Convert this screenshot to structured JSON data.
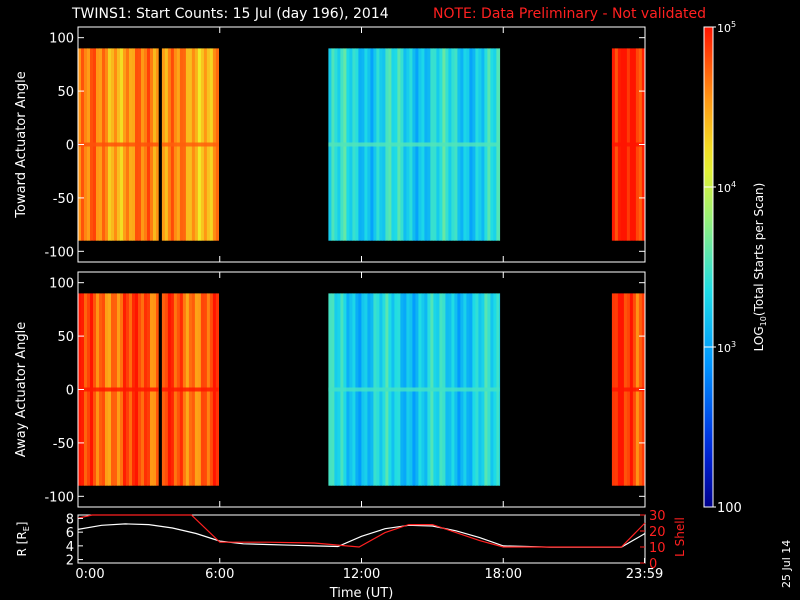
{
  "header": {
    "title": "TWINS1: Start Counts: 15 Jul (day 196), 2014",
    "note": "NOTE: Data Preliminary - Not validated",
    "note_color": "#ff2020"
  },
  "side_date": "25 Jul 14",
  "colorbar": {
    "label_main": "LOG",
    "label_sub": "10",
    "label_rest": "(Total Starts per Scan)",
    "ticks": [
      {
        "value": 100000,
        "base": "10",
        "exp": "5"
      },
      {
        "value": 10000,
        "base": "10",
        "exp": "4"
      },
      {
        "value": 1000,
        "base": "10",
        "exp": "3"
      },
      {
        "value": 100,
        "base": "100",
        "exp": ""
      }
    ],
    "min": 100,
    "max": 100000,
    "scale": "log"
  },
  "chart_data": [
    {
      "type": "heatmap",
      "ylabel": "Toward Actuator Angle",
      "ylim": [
        -110,
        110
      ],
      "yticks": [
        "100",
        "50",
        "0",
        "-50",
        "-100"
      ],
      "xlim": [
        0,
        24
      ],
      "data_angle_range": [
        -90,
        90
      ],
      "grid": false,
      "segments": [
        {
          "start_h": 0.0,
          "end_h": 3.4,
          "log_counts": 4.55
        },
        {
          "start_h": 3.55,
          "end_h": 5.95,
          "log_counts": 4.5
        },
        {
          "start_h": 10.6,
          "end_h": 17.85,
          "log_counts": 3.3
        },
        {
          "start_h": 22.6,
          "end_h": 24.0,
          "log_counts": 4.9
        }
      ]
    },
    {
      "type": "heatmap",
      "ylabel": "Away Actuator Angle",
      "ylim": [
        -110,
        110
      ],
      "yticks": [
        "100",
        "50",
        "0",
        "-50",
        "-100"
      ],
      "xlim": [
        0,
        24
      ],
      "data_angle_range": [
        -90,
        90
      ],
      "grid": false,
      "segments": [
        {
          "start_h": 0.0,
          "end_h": 3.4,
          "log_counts": 4.75
        },
        {
          "start_h": 3.55,
          "end_h": 5.95,
          "log_counts": 4.75
        },
        {
          "start_h": 10.6,
          "end_h": 17.85,
          "log_counts": 3.25
        },
        {
          "start_h": 22.6,
          "end_h": 24.0,
          "log_counts": 4.85
        }
      ]
    },
    {
      "type": "line",
      "ylabel_left": "R [R",
      "ylabel_left_sub": "E",
      "ylabel_left_end": "]",
      "ylabel_right": "L Shell",
      "ylim_left": [
        1.5,
        8.5
      ],
      "ylim_right": [
        0,
        30
      ],
      "yticks_left": [
        "8",
        "6",
        "4",
        "2"
      ],
      "yticks_right": [
        "30",
        "20",
        "10",
        "0"
      ],
      "xlabel": "Time (UT)",
      "xticks": [
        {
          "label": "0:00",
          "h": 0
        },
        {
          "label": "6:00",
          "h": 6
        },
        {
          "label": "12:00",
          "h": 12
        },
        {
          "label": "18:00",
          "h": 18
        },
        {
          "label": "23:59",
          "h": 23.98
        }
      ],
      "series": [
        {
          "name": "R [R_E]",
          "color": "#ffffff",
          "axis": "left",
          "x": [
            0,
            1,
            2,
            3,
            4,
            5,
            6,
            7,
            8,
            9,
            10,
            11,
            12,
            13,
            14,
            15,
            16,
            17,
            18,
            19,
            20,
            21,
            22,
            23,
            24
          ],
          "y": [
            6.4,
            7.0,
            7.2,
            7.1,
            6.6,
            5.8,
            4.7,
            4.3,
            4.2,
            4.1,
            4.0,
            3.9,
            5.4,
            6.5,
            7.0,
            6.9,
            6.2,
            5.2,
            4.0,
            3.9,
            3.8,
            3.8,
            3.8,
            3.8,
            5.8
          ]
        },
        {
          "name": "L Shell",
          "color": "#ff2020",
          "axis": "right",
          "x": [
            0,
            0.6,
            4.8,
            6.0,
            8.0,
            10.0,
            11.9,
            13.0,
            14.0,
            15.0,
            16.0,
            17.0,
            18.0,
            20.0,
            22.0,
            23.0,
            24.0
          ],
          "y": [
            28,
            30,
            30,
            13,
            13,
            12.5,
            10,
            19,
            24,
            24,
            19,
            14,
            10,
            10,
            10,
            10,
            25
          ]
        }
      ]
    }
  ]
}
